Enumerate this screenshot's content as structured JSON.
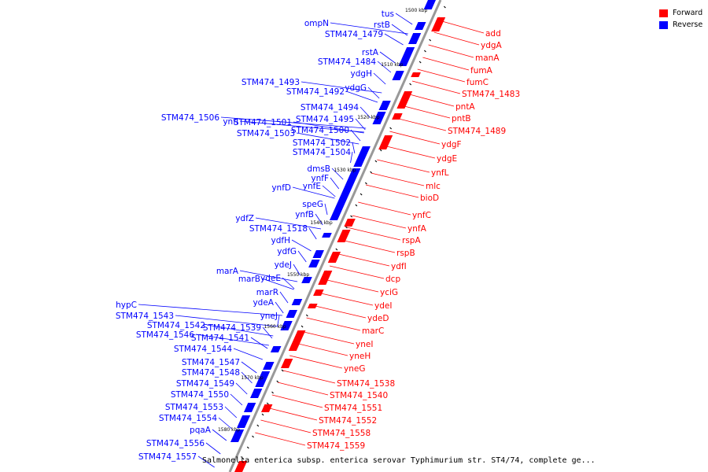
{
  "legend": [
    {
      "label": "Forward",
      "color": "#ff0000"
    },
    {
      "label": "Reverse",
      "color": "#0000ff"
    }
  ],
  "caption": "Salmonella enterica subsp. enterica serovar Typhimurium str. ST4/74, complete ge...",
  "colors": {
    "forward": "#ff0000",
    "reverse": "#0000ff",
    "backbone": "#999999"
  },
  "ticks": [
    "1500 kbp",
    "1510 kbp",
    "1520 kbp",
    "1530 kbp",
    "1540 kbp",
    "1550 kbp",
    "1560 kbp",
    "1570 kbp",
    "1580 kbp"
  ],
  "reverse_genes": [
    "tus",
    "rstB",
    "ompN",
    "STM474_1479",
    "rstA",
    "STM474_1484",
    "ydgH",
    "STM474_1493",
    "STM474_1492",
    "ydgG",
    "STM474_1494",
    "STM474_1506",
    "ynfI",
    "STM474_1501",
    "STM474_1495",
    "STM474_1503",
    "STM474_1500",
    "STM474_1502",
    "STM474_1504",
    "dmsB",
    "ynfF",
    "ynfD",
    "ynfE",
    "speG",
    "ynfB",
    "ydfZ",
    "STM474_1518",
    "ydfH",
    "ydfG",
    "ydeJ",
    "marA",
    "marB",
    "ydeE",
    "marR",
    "ydeA",
    "yneJ",
    "hypC",
    "STM474_1543",
    "STM474_1542",
    "STM474_1539",
    "STM474_1546",
    "STM474_1541",
    "STM474_1544",
    "STM474_1547",
    "STM474_1548",
    "STM474_1549",
    "STM474_1550",
    "STM474_1553",
    "STM474_1554",
    "pqaA",
    "STM474_1556",
    "STM474_1557"
  ],
  "forward_genes": [
    "add",
    "ydgA",
    "manA",
    "fumA",
    "fumC",
    "STM474_1483",
    "pntA",
    "pntB",
    "STM474_1489",
    "ydgF",
    "ydgE",
    "ynfL",
    "mlc",
    "bioD",
    "ynfC",
    "ynfA",
    "rspA",
    "rspB",
    "ydfI",
    "dcp",
    "yciG",
    "ydeI",
    "ydeD",
    "marC",
    "yneI",
    "yneH",
    "yneG",
    "STM474_1538",
    "STM474_1540",
    "STM474_1551",
    "STM474_1552",
    "STM474_1558",
    "STM474_1559"
  ]
}
